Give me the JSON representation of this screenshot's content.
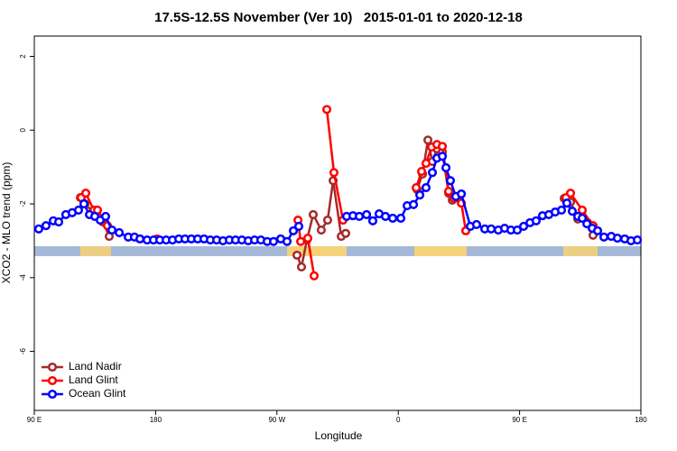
{
  "chart_data": {
    "type": "line",
    "title": "17.5S-12.5S November (Ver 10)   2015-01-01 to 2020-12-18",
    "x_label": "Longitude",
    "y_label": "XCO2 - MLO trend (ppm)",
    "xlim": [
      90,
      540
    ],
    "ylim": [
      -7.6,
      2.55
    ],
    "xticks": [
      {
        "value": 90,
        "label": "90 E"
      },
      180,
      {
        "value": 270,
        "label": "90 W"
      },
      {
        "value": 360,
        "label": "0"
      },
      {
        "value": 450,
        "label": "90 E"
      },
      {
        "value": 540,
        "label": "180"
      }
    ],
    "yticks": [
      -6,
      -4,
      -2,
      0,
      2
    ],
    "legend": "bottom-left",
    "series": [
      {
        "name": "Land Nadir",
        "color": "#a52a2a",
        "x": [
          124.2,
          127.5,
          134.2,
          140.9,
          145.6,
          215,
          284.9,
          288.2,
          292.2,
          296.9,
          302.9,
          307.6,
          311.7,
          317.7,
          321.0,
          345,
          374.0,
          378.0,
          382.0,
          385.3,
          388.7,
          392.7,
          397.4,
          400.1,
          404.1,
          445,
          483.1,
          487.8,
          493.2,
          500.5,
          504.5
        ],
        "values": [
          -1.83,
          -2.0,
          -2.24,
          -2.49,
          -2.88,
          null,
          -3.39,
          -3.71,
          -2.98,
          -2.29,
          -2.71,
          -2.44,
          -1.37,
          -2.88,
          -2.8,
          null,
          -1.61,
          -1.19,
          -0.27,
          -0.85,
          -0.51,
          -0.59,
          -1.71,
          -1.9,
          -1.83,
          null,
          -1.85,
          -1.95,
          -2.41,
          -2.51,
          -2.85
        ]
      },
      {
        "name": "Land Glint",
        "color": "#ff0000",
        "x": [
          124.8,
          128.2,
          134.2,
          136.9,
          144.2,
          162,
          181.1,
          240,
          285.6,
          287.6,
          292.9,
          297.6,
          302,
          307.0,
          312.3,
          319.0,
          346,
          373.3,
          377.3,
          380.6,
          384.7,
          388.7,
          392.7,
          397.4,
          401.4,
          406.8,
          410.1,
          447,
          484.4,
          487.8,
          496.5,
          504.5
        ],
        "values": [
          -1.83,
          -1.71,
          -2.17,
          -2.17,
          -2.59,
          null,
          -2.95,
          null,
          -2.44,
          -3.02,
          -2.93,
          -3.95,
          null,
          0.56,
          -1.15,
          -2.44,
          null,
          -1.56,
          -1.12,
          -0.9,
          -0.46,
          -0.39,
          -0.44,
          -1.66,
          -1.85,
          -1.98,
          -2.73,
          null,
          -1.83,
          -1.71,
          -2.17,
          -2.59
        ]
      },
      {
        "name": "Ocean Glint",
        "color": "#0000ff",
        "x": [
          93.3,
          98.7,
          104.1,
          108.1,
          113.4,
          118.1,
          122.8,
          126.8,
          130.9,
          134.9,
          138.9,
          142.9,
          147.6,
          153.0,
          159.7,
          164.3,
          168.4,
          173.7,
          178.4,
          183.1,
          187.8,
          192.5,
          197.2,
          201.8,
          206.5,
          211.2,
          215.9,
          220.6,
          225.3,
          230.0,
          234.7,
          239.3,
          244.0,
          248.7,
          253.4,
          258.1,
          262.8,
          267.5,
          272.8,
          277.5,
          282.2,
          286.2,
          304,
          321.7,
          326.4,
          331.1,
          336.5,
          341.1,
          345.8,
          350.5,
          355.9,
          361.9,
          366.6,
          371.3,
          376.0,
          380.6,
          385.3,
          388.7,
          392.7,
          395.4,
          398.7,
          402.7,
          406.8,
          413.5,
          418.1,
          424.2,
          428.9,
          434.2,
          438.9,
          443.6,
          448.3,
          453.0,
          457.7,
          462.3,
          467.0,
          471.7,
          476.4,
          481.1,
          485.1,
          489.1,
          493.2,
          496.5,
          499.9,
          503.9,
          507.9,
          512.6,
          518.0,
          522.6,
          528.0,
          532.7,
          537.4
        ],
        "values": [
          -2.68,
          -2.59,
          -2.46,
          -2.49,
          -2.29,
          -2.24,
          -2.17,
          -2.0,
          -2.29,
          -2.34,
          -2.44,
          -2.34,
          -2.71,
          -2.78,
          -2.9,
          -2.9,
          -2.95,
          -2.98,
          -2.98,
          -2.98,
          -2.98,
          -2.98,
          -2.95,
          -2.95,
          -2.95,
          -2.95,
          -2.95,
          -2.98,
          -2.98,
          -3.0,
          -2.98,
          -2.98,
          -2.98,
          -3.0,
          -2.98,
          -2.98,
          -3.02,
          -3.02,
          -2.95,
          -3.02,
          -2.73,
          -2.61,
          null,
          -2.34,
          -2.32,
          -2.34,
          -2.29,
          -2.46,
          -2.27,
          -2.34,
          -2.39,
          -2.39,
          -2.05,
          -2.02,
          -1.76,
          -1.56,
          -1.15,
          -0.76,
          -0.71,
          -1.02,
          -1.37,
          -1.8,
          -1.73,
          -2.61,
          -2.56,
          -2.68,
          -2.68,
          -2.71,
          -2.66,
          -2.71,
          -2.71,
          -2.61,
          -2.51,
          -2.46,
          -2.32,
          -2.29,
          -2.22,
          -2.17,
          -1.98,
          -2.2,
          -2.34,
          -2.39,
          -2.54,
          -2.66,
          -2.73,
          -2.9,
          -2.88,
          -2.93,
          -2.95,
          -3.0,
          -2.98
        ]
      }
    ]
  }
}
